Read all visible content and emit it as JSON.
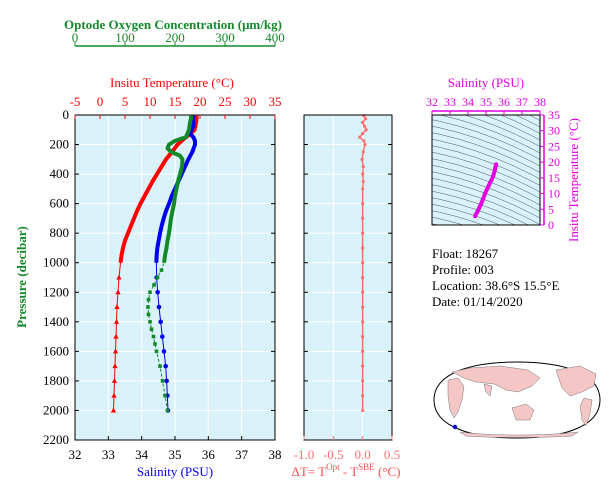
{
  "colors": {
    "plot_bg": "#d9f1f8",
    "grid": "#ffffff",
    "oxygen": "#138a2a",
    "temperature": "#ff0000",
    "salinity": "#0000ee",
    "delta_t": "#ff6f6f",
    "ts_curve": "#e000e0",
    "axis": "#000000"
  },
  "float_info": {
    "float_line": "Float:  18267",
    "profile_line": "Profile:  003",
    "location_line": "Location:  38.6°S  15.5°E",
    "date_line": "Date:  01/14/2020"
  },
  "chart_data": [
    {
      "type": "line",
      "title": "",
      "axes": {
        "oxygen": {
          "label": "Optode Oxygen Concentration (μm/kg)",
          "range": [
            0,
            400
          ],
          "ticks": [
            0,
            100,
            200,
            300,
            400
          ],
          "tick_labels": [
            "0",
            "100",
            "200",
            "300",
            "400"
          ]
        },
        "temperature": {
          "label": "Insitu Temperature (°C)",
          "range": [
            -5,
            35
          ],
          "ticks": [
            -5,
            0,
            5,
            10,
            15,
            20,
            25,
            30,
            35
          ],
          "tick_labels": [
            "-5",
            "0",
            "5",
            "10",
            "15",
            "20",
            "25",
            "30",
            "35"
          ]
        },
        "salinity": {
          "label": "Salinity (PSU)",
          "range": [
            32,
            38
          ],
          "ticks": [
            32,
            33,
            34,
            35,
            36,
            37,
            38
          ],
          "tick_labels": [
            "32",
            "33",
            "34",
            "35",
            "36",
            "37",
            "38"
          ]
        },
        "pressure": {
          "label": "Pressure (decibar)",
          "range": [
            0,
            2200
          ],
          "inverted": true,
          "ticks": [
            0,
            200,
            400,
            600,
            800,
            1000,
            1200,
            1400,
            1600,
            1800,
            2000,
            2200
          ],
          "tick_labels": [
            "0",
            "200",
            "400",
            "600",
            "800",
            "1000",
            "1200",
            "1400",
            "1600",
            "1800",
            "2000",
            "2200"
          ]
        }
      },
      "grid": true,
      "series": [
        {
          "variable": "temperature",
          "pressure": [
            5,
            25,
            50,
            75,
            100,
            125,
            150,
            175,
            200,
            250,
            300,
            350,
            400,
            450,
            500,
            550,
            600,
            650,
            700,
            750,
            800,
            850,
            900,
            950,
            1000,
            1100,
            1200,
            1300,
            1400,
            1500,
            1600,
            1700,
            1800,
            1900,
            2000
          ],
          "values": [
            19.3,
            19.3,
            19.2,
            19.1,
            18.9,
            18.2,
            17.2,
            16.3,
            15.5,
            14.4,
            13.2,
            12.3,
            11.4,
            10.5,
            9.7,
            8.9,
            8.1,
            7.4,
            6.8,
            6.2,
            5.6,
            5.0,
            4.6,
            4.3,
            4.1,
            3.8,
            3.6,
            3.4,
            3.3,
            3.2,
            3.1,
            3.0,
            2.9,
            2.8,
            2.7
          ]
        },
        {
          "variable": "salinity",
          "pressure": [
            5,
            25,
            50,
            75,
            100,
            125,
            150,
            175,
            200,
            250,
            300,
            350,
            400,
            450,
            500,
            550,
            600,
            650,
            700,
            750,
            800,
            850,
            900,
            950,
            1000,
            1100,
            1200,
            1300,
            1400,
            1500,
            1600,
            1700,
            1800,
            1900,
            2000
          ],
          "values": [
            35.55,
            35.55,
            35.56,
            35.55,
            35.5,
            35.45,
            35.55,
            35.6,
            35.6,
            35.52,
            35.4,
            35.3,
            35.2,
            35.1,
            35.0,
            34.9,
            34.82,
            34.73,
            34.66,
            34.6,
            34.55,
            34.51,
            34.47,
            34.45,
            34.44,
            34.45,
            34.48,
            34.52,
            34.57,
            34.62,
            34.67,
            34.72,
            34.75,
            34.77,
            34.79
          ]
        },
        {
          "variable": "oxygen",
          "pressure": [
            5,
            25,
            50,
            75,
            100,
            125,
            150,
            175,
            200,
            225,
            250,
            275,
            300,
            350,
            400,
            450,
            500,
            550,
            600,
            650,
            700,
            750,
            800,
            850,
            900,
            950,
            1000,
            1050,
            1100,
            1150,
            1200,
            1250,
            1300,
            1350,
            1400,
            1450,
            1500,
            1550,
            1600,
            1700,
            1800,
            1900,
            2000
          ],
          "values": [
            232,
            232,
            230,
            229,
            228,
            225,
            222,
            200,
            188,
            185,
            192,
            210,
            215,
            214,
            210,
            206,
            203,
            200,
            198,
            195,
            192,
            190,
            188,
            185,
            183,
            180,
            178,
            173,
            165,
            158,
            150,
            147,
            146,
            147,
            150,
            153,
            157,
            160,
            163,
            170,
            175,
            180,
            185
          ]
        }
      ]
    },
    {
      "type": "line",
      "title": "",
      "axes": {
        "x": {
          "label_delta": "ΔT= T",
          "label_sup1": "Opt",
          "label_mid": " - T",
          "label_sup2": "SBE",
          "label_unit": " (°C)",
          "range": [
            -1.0,
            0.5
          ],
          "ticks": [
            -1.0,
            -0.5,
            0.0,
            0.5
          ],
          "tick_labels": [
            "-1.0",
            "-0.5",
            "0.0",
            "0.5"
          ]
        },
        "y": {
          "range": [
            0,
            2200
          ],
          "inverted": true
        }
      },
      "grid": true,
      "series": [
        {
          "variable": "delta_t",
          "pressure": [
            5,
            25,
            50,
            75,
            100,
            125,
            150,
            175,
            200,
            250,
            300,
            350,
            400,
            450,
            500,
            600,
            700,
            800,
            900,
            1000,
            1100,
            1200,
            1300,
            1400,
            1500,
            1600,
            1700,
            1800,
            1900,
            2000
          ],
          "values": [
            0.02,
            0.05,
            0.0,
            0.03,
            0.06,
            0.0,
            -0.05,
            0.02,
            0.04,
            0.01,
            -0.01,
            0.01,
            0.0,
            0.01,
            0.0,
            0.0,
            0.0,
            0.0,
            0.0,
            0.0,
            0.0,
            0.0,
            0.0,
            0.0,
            0.0,
            0.0,
            0.0,
            0.0,
            0.0,
            0.0
          ]
        }
      ]
    },
    {
      "type": "line",
      "title": "",
      "axes": {
        "x": {
          "label": "Salinity (PSU)",
          "range": [
            32,
            38
          ],
          "ticks": [
            32,
            33,
            34,
            35,
            36,
            37,
            38
          ],
          "tick_labels": [
            "32",
            "33",
            "34",
            "35",
            "36",
            "37",
            "38"
          ]
        },
        "y": {
          "label": "Insitu Temperature (°C)",
          "range": [
            0,
            35
          ],
          "ticks": [
            0,
            5,
            10,
            15,
            20,
            25,
            30,
            35
          ],
          "tick_labels": [
            "0",
            "5",
            "10",
            "15",
            "20",
            "25",
            "30",
            "35"
          ]
        }
      },
      "grid": false,
      "series": [
        {
          "variable": "ts",
          "salinity": [
            34.4,
            34.45,
            34.55,
            34.65,
            34.75,
            34.85,
            34.95,
            35.05,
            35.15,
            35.25,
            35.35,
            35.42,
            35.48,
            35.52,
            35.55,
            35.56
          ],
          "temperature": [
            2.8,
            3.5,
            4.5,
            5.8,
            7.0,
            8.5,
            10.0,
            11.3,
            12.5,
            13.7,
            14.8,
            16.0,
            17.2,
            18.3,
            19.0,
            19.3
          ]
        }
      ]
    }
  ]
}
